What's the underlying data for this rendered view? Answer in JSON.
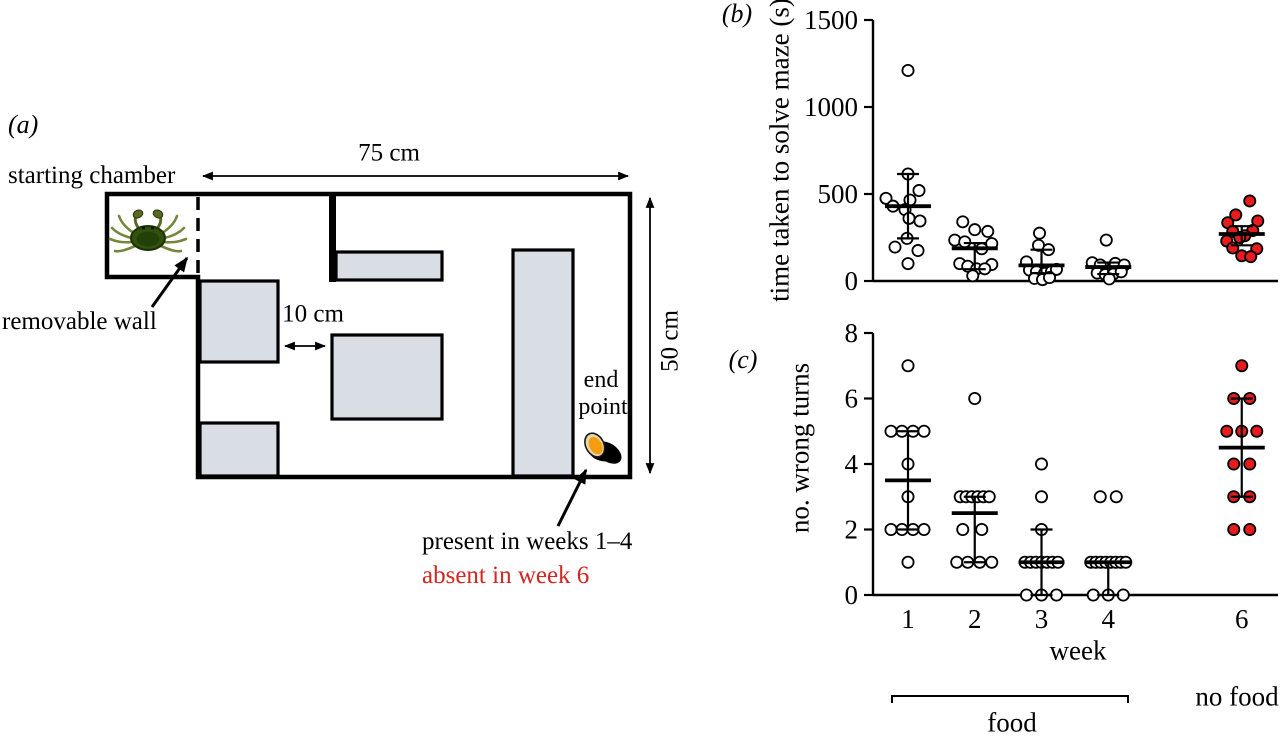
{
  "panel_a": {
    "label": "(a)",
    "starting_chamber_label": "starting chamber",
    "removable_wall_label": "removable wall",
    "width_label": "75 cm",
    "gap_label": "10 cm",
    "height_label": "50 cm",
    "end_point_line1": "end",
    "end_point_line2": "point",
    "present_label": "present in weeks 1–4",
    "absent_label": "absent in week 6",
    "crab_icon": "shore-crab",
    "mussel_icon": "mussel-food-reward"
  },
  "annotations": {
    "food": "food",
    "no_food": "no food"
  },
  "colors": {
    "red_fill": "#e81c1c",
    "open_fill": "#ffffff",
    "stroke": "#000000",
    "obstacle_fill": "#d9dee4",
    "absent_text": "#d02720"
  },
  "chart_data": [
    {
      "id": "b",
      "type": "scatter",
      "panel_label": "(b)",
      "title": "",
      "xlabel": "",
      "ylabel": "time taken to solve maze (s)",
      "ylim": [
        0,
        1500
      ],
      "yticks": [
        0,
        500,
        1000,
        1500
      ],
      "x_tick_labels": [
        "1",
        "2",
        "3",
        "4",
        "6"
      ],
      "legend": "open circles = food weeks 1-4, red circles = no food week 6",
      "groups": [
        {
          "week": 1,
          "label": "1",
          "fill": "open",
          "median": 430,
          "whisker_low": 245,
          "whisker_high": 615,
          "points": [
            [
              1210,
              0
            ],
            [
              615,
              0
            ],
            [
              520,
              11
            ],
            [
              475,
              -22
            ],
            [
              465,
              2
            ],
            [
              430,
              -15
            ],
            [
              410,
              -3
            ],
            [
              360,
              1
            ],
            [
              345,
              12
            ],
            [
              245,
              -1
            ],
            [
              195,
              -13
            ],
            [
              175,
              10
            ],
            [
              100,
              0
            ]
          ]
        },
        {
          "week": 2,
          "label": "2",
          "fill": "open",
          "median": 188,
          "whisker_low": 68,
          "whisker_high": 218,
          "points": [
            [
              340,
              -12
            ],
            [
              295,
              0
            ],
            [
              285,
              13
            ],
            [
              235,
              -20
            ],
            [
              225,
              -10
            ],
            [
              215,
              17
            ],
            [
              185,
              7
            ],
            [
              100,
              -15
            ],
            [
              95,
              17
            ],
            [
              85,
              -7
            ],
            [
              70,
              2
            ],
            [
              70,
              10
            ],
            [
              30,
              -2
            ]
          ]
        },
        {
          "week": 3,
          "label": "3",
          "fill": "open",
          "median": 90,
          "whisker_low": 45,
          "whisker_high": 180,
          "points": [
            [
              275,
              -2
            ],
            [
              205,
              -3
            ],
            [
              180,
              7
            ],
            [
              110,
              -15
            ],
            [
              63,
              -12
            ],
            [
              54,
              -5
            ],
            [
              44,
              3
            ],
            [
              54,
              10
            ],
            [
              67,
              15
            ],
            [
              15,
              -7
            ],
            [
              8,
              1
            ],
            [
              20,
              8
            ]
          ]
        },
        {
          "week": 4,
          "label": "4",
          "fill": "open",
          "median": 80,
          "whisker_low": 40,
          "whisker_high": 106,
          "points": [
            [
              235,
              -2
            ],
            [
              105,
              -16
            ],
            [
              92,
              -8
            ],
            [
              101,
              7
            ],
            [
              92,
              16
            ],
            [
              46,
              -11
            ],
            [
              37,
              -3
            ],
            [
              40,
              5
            ],
            [
              53,
              13
            ],
            [
              12,
              1
            ]
          ]
        },
        {
          "week": 6,
          "label": "6",
          "fill": "red",
          "median": 270,
          "whisker_low": 205,
          "whisker_high": 315,
          "points": [
            [
              460,
              8
            ],
            [
              380,
              -6
            ],
            [
              345,
              16
            ],
            [
              335,
              -14
            ],
            [
              290,
              11
            ],
            [
              285,
              -9
            ],
            [
              260,
              3
            ],
            [
              250,
              -2
            ],
            [
              230,
              -15
            ],
            [
              190,
              -9
            ],
            [
              185,
              15
            ],
            [
              145,
              0
            ],
            [
              140,
              9
            ]
          ]
        }
      ]
    },
    {
      "id": "c",
      "type": "scatter",
      "panel_label": "(c)",
      "title": "",
      "xlabel": "week",
      "ylabel": "no. wrong turns",
      "ylim": [
        0,
        8
      ],
      "yticks": [
        0,
        2,
        4,
        6,
        8
      ],
      "x_tick_labels": [
        "1",
        "2",
        "3",
        "4",
        "6"
      ],
      "legend": "open circles = food weeks 1-4, red circles = no food week 6",
      "groups": [
        {
          "week": 1,
          "label": "1",
          "fill": "open",
          "median": 3.5,
          "whisker_low": 2,
          "whisker_high": 5,
          "points": [
            [
              7,
              0
            ],
            [
              5,
              -17
            ],
            [
              5,
              -6
            ],
            [
              5,
              5
            ],
            [
              5,
              16
            ],
            [
              4,
              0
            ],
            [
              3,
              0
            ],
            [
              2,
              -17
            ],
            [
              2,
              -6
            ],
            [
              2,
              5
            ],
            [
              2,
              16
            ],
            [
              1,
              0
            ]
          ]
        },
        {
          "week": 2,
          "label": "2",
          "fill": "open",
          "median": 2.5,
          "whisker_low": 1,
          "whisker_high": 3,
          "points": [
            [
              6,
              0
            ],
            [
              3,
              -14.5
            ],
            [
              3,
              -8.7
            ],
            [
              3,
              -2.9
            ],
            [
              3,
              2.9
            ],
            [
              3,
              8.7
            ],
            [
              3,
              14.5
            ],
            [
              2,
              -12
            ],
            [
              2,
              7
            ],
            [
              1,
              -18
            ],
            [
              1,
              -7
            ],
            [
              1,
              5
            ],
            [
              1,
              17
            ]
          ]
        },
        {
          "week": 3,
          "label": "3",
          "fill": "open",
          "median": 1,
          "whisker_low": 0,
          "whisker_high": 2,
          "points": [
            [
              4,
              0
            ],
            [
              3,
              0
            ],
            [
              2,
              0
            ],
            [
              1,
              -16.5
            ],
            [
              1,
              -11
            ],
            [
              1,
              -5.5
            ],
            [
              1,
              0
            ],
            [
              1,
              5.5
            ],
            [
              1,
              11
            ],
            [
              1,
              16.5
            ],
            [
              0,
              -15
            ],
            [
              0,
              0
            ],
            [
              0,
              15
            ]
          ]
        },
        {
          "week": 4,
          "label": "4",
          "fill": "open",
          "median": 1,
          "whisker_low": 0,
          "whisker_high": 1,
          "points": [
            [
              3,
              -8
            ],
            [
              3,
              8
            ],
            [
              1,
              -17.5
            ],
            [
              1,
              -12.5
            ],
            [
              1,
              -7.5
            ],
            [
              1,
              -2.5
            ],
            [
              1,
              2.5
            ],
            [
              1,
              7.5
            ],
            [
              1,
              12.5
            ],
            [
              1,
              17.5
            ],
            [
              0,
              -15
            ],
            [
              0,
              0
            ],
            [
              0,
              15
            ]
          ]
        },
        {
          "week": 6,
          "label": "6",
          "fill": "red",
          "median": 4.5,
          "whisker_low": 3,
          "whisker_high": 6,
          "points": [
            [
              7,
              0
            ],
            [
              6,
              -8
            ],
            [
              6,
              8
            ],
            [
              5,
              -15
            ],
            [
              5,
              0
            ],
            [
              5,
              15
            ],
            [
              4,
              -8
            ],
            [
              4,
              8
            ],
            [
              3,
              -8
            ],
            [
              3,
              8
            ],
            [
              2,
              -8
            ],
            [
              2,
              8
            ]
          ]
        }
      ]
    }
  ]
}
